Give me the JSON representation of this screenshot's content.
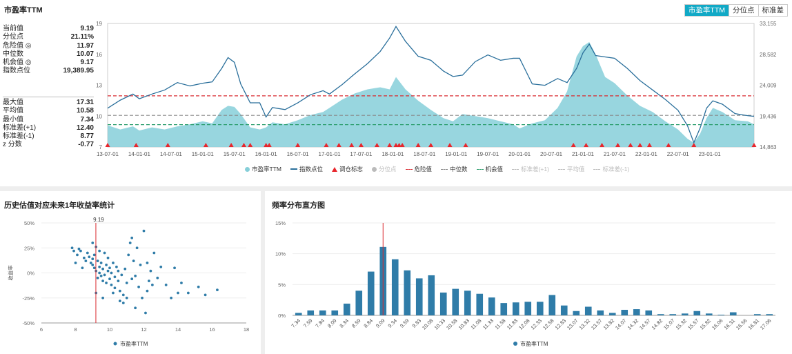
{
  "top": {
    "title": "市盈率TTM",
    "tabs": [
      "市盈率TTM",
      "分位点",
      "标准差"
    ],
    "active_tab": 0
  },
  "stats": {
    "group1": [
      {
        "label": "当前值",
        "value": "9.19"
      },
      {
        "label": "分位点",
        "value": "21.11%"
      },
      {
        "label": "危险值 ◎",
        "value": "11.97"
      },
      {
        "label": "中位数",
        "value": "10.07"
      },
      {
        "label": "机会值 ◎",
        "value": "9.17"
      },
      {
        "label": "指数点位",
        "value": "19,389.95"
      }
    ],
    "group2": [
      {
        "label": "最大值",
        "value": "17.31"
      },
      {
        "label": "平均值",
        "value": "10.58"
      },
      {
        "label": "最小值",
        "value": "7.34"
      },
      {
        "label": "标准差(+1)",
        "value": "12.40"
      },
      {
        "label": "标准差(-1)",
        "value": "8.77"
      },
      {
        "label": "z 分数",
        "value": "-0.77"
      }
    ]
  },
  "panels": {
    "scatter_title": "历史估值对应未来1年收益率统计",
    "hist_title": "频率分布直方图"
  },
  "colors": {
    "pe_fill": "#86cfd9",
    "index_line": "#2a6f9b",
    "danger": "#d9282f",
    "median": "#888888",
    "opportunity": "#2a9d6c",
    "marker": "#e8262c",
    "scatter": "#2f7ca8",
    "bar": "#2f7ca8",
    "tab_active": "#11a9c6"
  },
  "chart_data": [
    {
      "type": "area",
      "title": "",
      "x_ticks": [
        "13-07-01",
        "14-01-01",
        "14-07-01",
        "15-01-01",
        "15-07-01",
        "16-01-01",
        "16-07-01",
        "17-01-01",
        "17-07-01",
        "18-01-01",
        "18-07-01",
        "19-01-01",
        "19-07-01",
        "20-01-01",
        "20-07-01",
        "21-01-01",
        "21-07-01",
        "22-01-01",
        "22-07-01",
        "23-01-01"
      ],
      "ylim_left": [
        7,
        19
      ],
      "y_ticks_left": [
        7,
        10,
        13,
        16,
        19
      ],
      "y_ticks_right": [
        "14,863",
        "19,436",
        "24,009",
        "28,582",
        "33,155"
      ],
      "ylim_right": [
        14863,
        33155
      ],
      "x_range": [
        2013.5,
        2023.7
      ],
      "series": [
        {
          "name": "市盈率TTM",
          "kind": "area",
          "axis": "left",
          "x": [
            2013.5,
            2013.7,
            2013.9,
            2014.0,
            2014.2,
            2014.4,
            2014.6,
            2014.8,
            2015.0,
            2015.15,
            2015.3,
            2015.4,
            2015.5,
            2015.6,
            2015.75,
            2015.9,
            2016.0,
            2016.1,
            2016.3,
            2016.5,
            2016.7,
            2016.9,
            2017.0,
            2017.2,
            2017.4,
            2017.6,
            2017.8,
            2017.95,
            2018.05,
            2018.2,
            2018.4,
            2018.6,
            2018.8,
            2018.95,
            2019.1,
            2019.3,
            2019.5,
            2019.7,
            2019.9,
            2020.0,
            2020.2,
            2020.4,
            2020.6,
            2020.75,
            2020.9,
            2021.0,
            2021.1,
            2021.2,
            2021.35,
            2021.5,
            2021.7,
            2021.9,
            2022.1,
            2022.3,
            2022.5,
            2022.65,
            2022.75,
            2022.85,
            2022.95,
            2023.05,
            2023.2,
            2023.4,
            2023.6,
            2023.7
          ],
          "y": [
            9.1,
            8.7,
            9.0,
            8.6,
            8.9,
            8.7,
            9.0,
            9.2,
            9.5,
            9.3,
            10.6,
            11.0,
            10.9,
            10.2,
            8.9,
            8.7,
            8.9,
            9.4,
            9.2,
            9.6,
            10.1,
            10.4,
            10.8,
            11.6,
            12.2,
            12.6,
            12.8,
            12.6,
            13.8,
            12.6,
            11.5,
            10.6,
            9.8,
            9.5,
            10.2,
            10.0,
            9.8,
            9.5,
            9.2,
            8.8,
            9.3,
            9.6,
            10.8,
            12.4,
            15.8,
            16.8,
            17.2,
            16.0,
            13.8,
            13.2,
            12.0,
            11.0,
            10.4,
            9.5,
            8.7,
            7.8,
            7.4,
            8.3,
            9.8,
            10.8,
            10.4,
            9.6,
            9.5,
            9.2
          ]
        },
        {
          "name": "指数点位",
          "kind": "line",
          "axis": "right",
          "x": [
            2013.5,
            2013.7,
            2013.9,
            2014.0,
            2014.2,
            2014.4,
            2014.6,
            2014.8,
            2015.0,
            2015.15,
            2015.3,
            2015.4,
            2015.5,
            2015.6,
            2015.75,
            2015.9,
            2016.0,
            2016.1,
            2016.3,
            2016.5,
            2016.7,
            2016.9,
            2017.0,
            2017.2,
            2017.4,
            2017.6,
            2017.8,
            2017.95,
            2018.05,
            2018.2,
            2018.4,
            2018.6,
            2018.8,
            2018.95,
            2019.1,
            2019.3,
            2019.5,
            2019.7,
            2019.9,
            2020.0,
            2020.2,
            2020.4,
            2020.6,
            2020.75,
            2020.9,
            2021.0,
            2021.1,
            2021.2,
            2021.35,
            2021.5,
            2021.7,
            2021.9,
            2022.1,
            2022.3,
            2022.5,
            2022.65,
            2022.75,
            2022.85,
            2022.95,
            2023.05,
            2023.2,
            2023.4,
            2023.6,
            2023.7
          ],
          "y": [
            20600,
            21800,
            22700,
            22000,
            22700,
            23300,
            24400,
            23900,
            24300,
            24500,
            26500,
            28100,
            27400,
            24200,
            21400,
            21400,
            19300,
            20700,
            20400,
            21400,
            22600,
            23200,
            22700,
            24100,
            25700,
            27200,
            29000,
            31000,
            32700,
            30500,
            28300,
            27700,
            26100,
            25300,
            25500,
            27500,
            28500,
            27700,
            28000,
            28000,
            24200,
            24000,
            25000,
            24400,
            26500,
            28800,
            30100,
            28400,
            28200,
            28000,
            26500,
            24700,
            23300,
            21900,
            20300,
            18000,
            15500,
            17700,
            20600,
            21700,
            21200,
            19800,
            19500,
            19400
          ]
        }
      ],
      "reference_lines": [
        {
          "name": "危险值",
          "value": 11.97
        },
        {
          "name": "中位数",
          "value": 10.07
        },
        {
          "name": "机会值",
          "value": 9.17
        }
      ],
      "markers_name": "调仓标志",
      "markers_x": [
        2013.5,
        2013.95,
        2014.45,
        2015.05,
        2015.45,
        2015.65,
        2015.75,
        2016.0,
        2016.05,
        2016.5,
        2016.95,
        2017.15,
        2017.35,
        2017.5,
        2017.75,
        2017.95,
        2018.05,
        2018.1,
        2018.15,
        2018.4,
        2018.6,
        2018.9,
        2019.15,
        2020.85,
        2021.05,
        2021.3,
        2021.55,
        2021.75,
        2021.9,
        2022.05,
        2022.35,
        2022.75,
        2023.7
      ],
      "legend": [
        "市盈率TTM",
        "指数点位",
        "调仓标志",
        "分位点",
        "危险值",
        "中位数",
        "机会值",
        "标准差(+1)",
        "平均值",
        "标准差(-1)"
      ],
      "legend_inactive": [
        "分位点",
        "标准差(+1)",
        "平均值",
        "标准差(-1)"
      ]
    },
    {
      "type": "scatter",
      "title": "历史估值对应未来1年收益率统计",
      "xlim": [
        6,
        18
      ],
      "ylim": [
        -50,
        50
      ],
      "x_ticks": [
        6,
        8,
        10,
        12,
        14,
        16,
        18
      ],
      "y_ticks": [
        "50%",
        "25%",
        "0%",
        "-25%",
        "-50%"
      ],
      "ylabel": "收益率",
      "vline_value": 9.19,
      "vline_label": "9.19",
      "series_name": "市盈率TTM",
      "points": [
        [
          7.8,
          25
        ],
        [
          8.1,
          18
        ],
        [
          8.3,
          22
        ],
        [
          8.5,
          15
        ],
        [
          8.6,
          12
        ],
        [
          8.7,
          20
        ],
        [
          8.8,
          16
        ],
        [
          8.9,
          10
        ],
        [
          9.0,
          14
        ],
        [
          9.0,
          8
        ],
        [
          9.1,
          5
        ],
        [
          9.1,
          18
        ],
        [
          9.2,
          2
        ],
        [
          9.2,
          26
        ],
        [
          9.3,
          12
        ],
        [
          9.3,
          -5
        ],
        [
          9.4,
          0
        ],
        [
          9.4,
          6
        ],
        [
          9.5,
          -3
        ],
        [
          9.5,
          10
        ],
        [
          9.6,
          -8
        ],
        [
          9.6,
          4
        ],
        [
          9.7,
          20
        ],
        [
          9.7,
          -2
        ],
        [
          9.8,
          8
        ],
        [
          9.8,
          -10
        ],
        [
          9.9,
          2
        ],
        [
          9.9,
          15
        ],
        [
          10.0,
          -6
        ],
        [
          10.0,
          5
        ],
        [
          10.1,
          -12
        ],
        [
          10.1,
          0
        ],
        [
          10.2,
          10
        ],
        [
          10.3,
          -4
        ],
        [
          10.3,
          -15
        ],
        [
          10.4,
          6
        ],
        [
          10.5,
          -8
        ],
        [
          10.5,
          2
        ],
        [
          10.6,
          -18
        ],
        [
          10.7,
          -2
        ],
        [
          10.8,
          -22
        ],
        [
          10.9,
          4
        ],
        [
          11.0,
          -10
        ],
        [
          11.0,
          -25
        ],
        [
          11.1,
          18
        ],
        [
          11.2,
          30
        ],
        [
          11.3,
          -6
        ],
        [
          11.4,
          12
        ],
        [
          11.5,
          -3
        ],
        [
          11.6,
          25
        ],
        [
          11.7,
          -14
        ],
        [
          11.8,
          8
        ],
        [
          11.9,
          -25
        ],
        [
          12.0,
          42
        ],
        [
          12.1,
          -40
        ],
        [
          12.2,
          10
        ],
        [
          12.3,
          -8
        ],
        [
          12.4,
          2
        ],
        [
          12.5,
          -12
        ],
        [
          12.6,
          20
        ],
        [
          12.8,
          -5
        ],
        [
          13.0,
          6
        ],
        [
          13.3,
          -12
        ],
        [
          13.6,
          -25
        ],
        [
          13.8,
          5
        ],
        [
          14.0,
          -20
        ],
        [
          14.2,
          -10
        ],
        [
          14.6,
          -20
        ],
        [
          15.2,
          -14
        ],
        [
          15.6,
          -22
        ],
        [
          16.3,
          -17
        ],
        [
          8.0,
          10
        ],
        [
          8.4,
          5
        ],
        [
          9.2,
          -20
        ],
        [
          9.6,
          -25
        ],
        [
          10.8,
          -30
        ],
        [
          11.5,
          -35
        ],
        [
          7.9,
          22
        ],
        [
          8.2,
          24
        ],
        [
          9.0,
          30
        ],
        [
          9.4,
          22
        ],
        [
          10.2,
          -20
        ],
        [
          10.6,
          -28
        ],
        [
          11.3,
          35
        ],
        [
          12.2,
          -18
        ]
      ]
    },
    {
      "type": "bar",
      "title": "频率分布直方图",
      "categories": [
        "7.34",
        "7.59",
        "7.84",
        "8.09",
        "8.34",
        "8.59",
        "8.84",
        "9.09",
        "9.34",
        "9.59",
        "9.83",
        "10.08",
        "10.33",
        "10.58",
        "10.83",
        "11.08",
        "11.33",
        "11.58",
        "11.83",
        "12.08",
        "12.33",
        "12.58",
        "12.83",
        "13.07",
        "13.32",
        "13.57",
        "13.82",
        "14.07",
        "14.32",
        "14.57",
        "14.82",
        "15.07",
        "15.32",
        "15.57",
        "15.82",
        "16.06",
        "16.31",
        "16.56",
        "16.81",
        "17.06"
      ],
      "values": [
        0.4,
        0.8,
        0.8,
        0.8,
        1.9,
        4.0,
        7.1,
        11.1,
        9.1,
        7.3,
        6.0,
        6.5,
        3.7,
        4.3,
        4.0,
        3.5,
        2.9,
        2.0,
        2.1,
        2.2,
        2.2,
        3.3,
        1.6,
        0.7,
        1.4,
        0.8,
        0.4,
        0.9,
        1.0,
        0.8,
        0.2,
        0.2,
        0.3,
        0.7,
        0.3,
        0.1,
        0.5,
        0.0,
        0.2,
        0.2
      ],
      "ylim": [
        0,
        15
      ],
      "y_ticks": [
        "15%",
        "10%",
        "5%",
        "0%"
      ],
      "vline_category": "9.09",
      "series_name": "市盈率TTM"
    }
  ]
}
